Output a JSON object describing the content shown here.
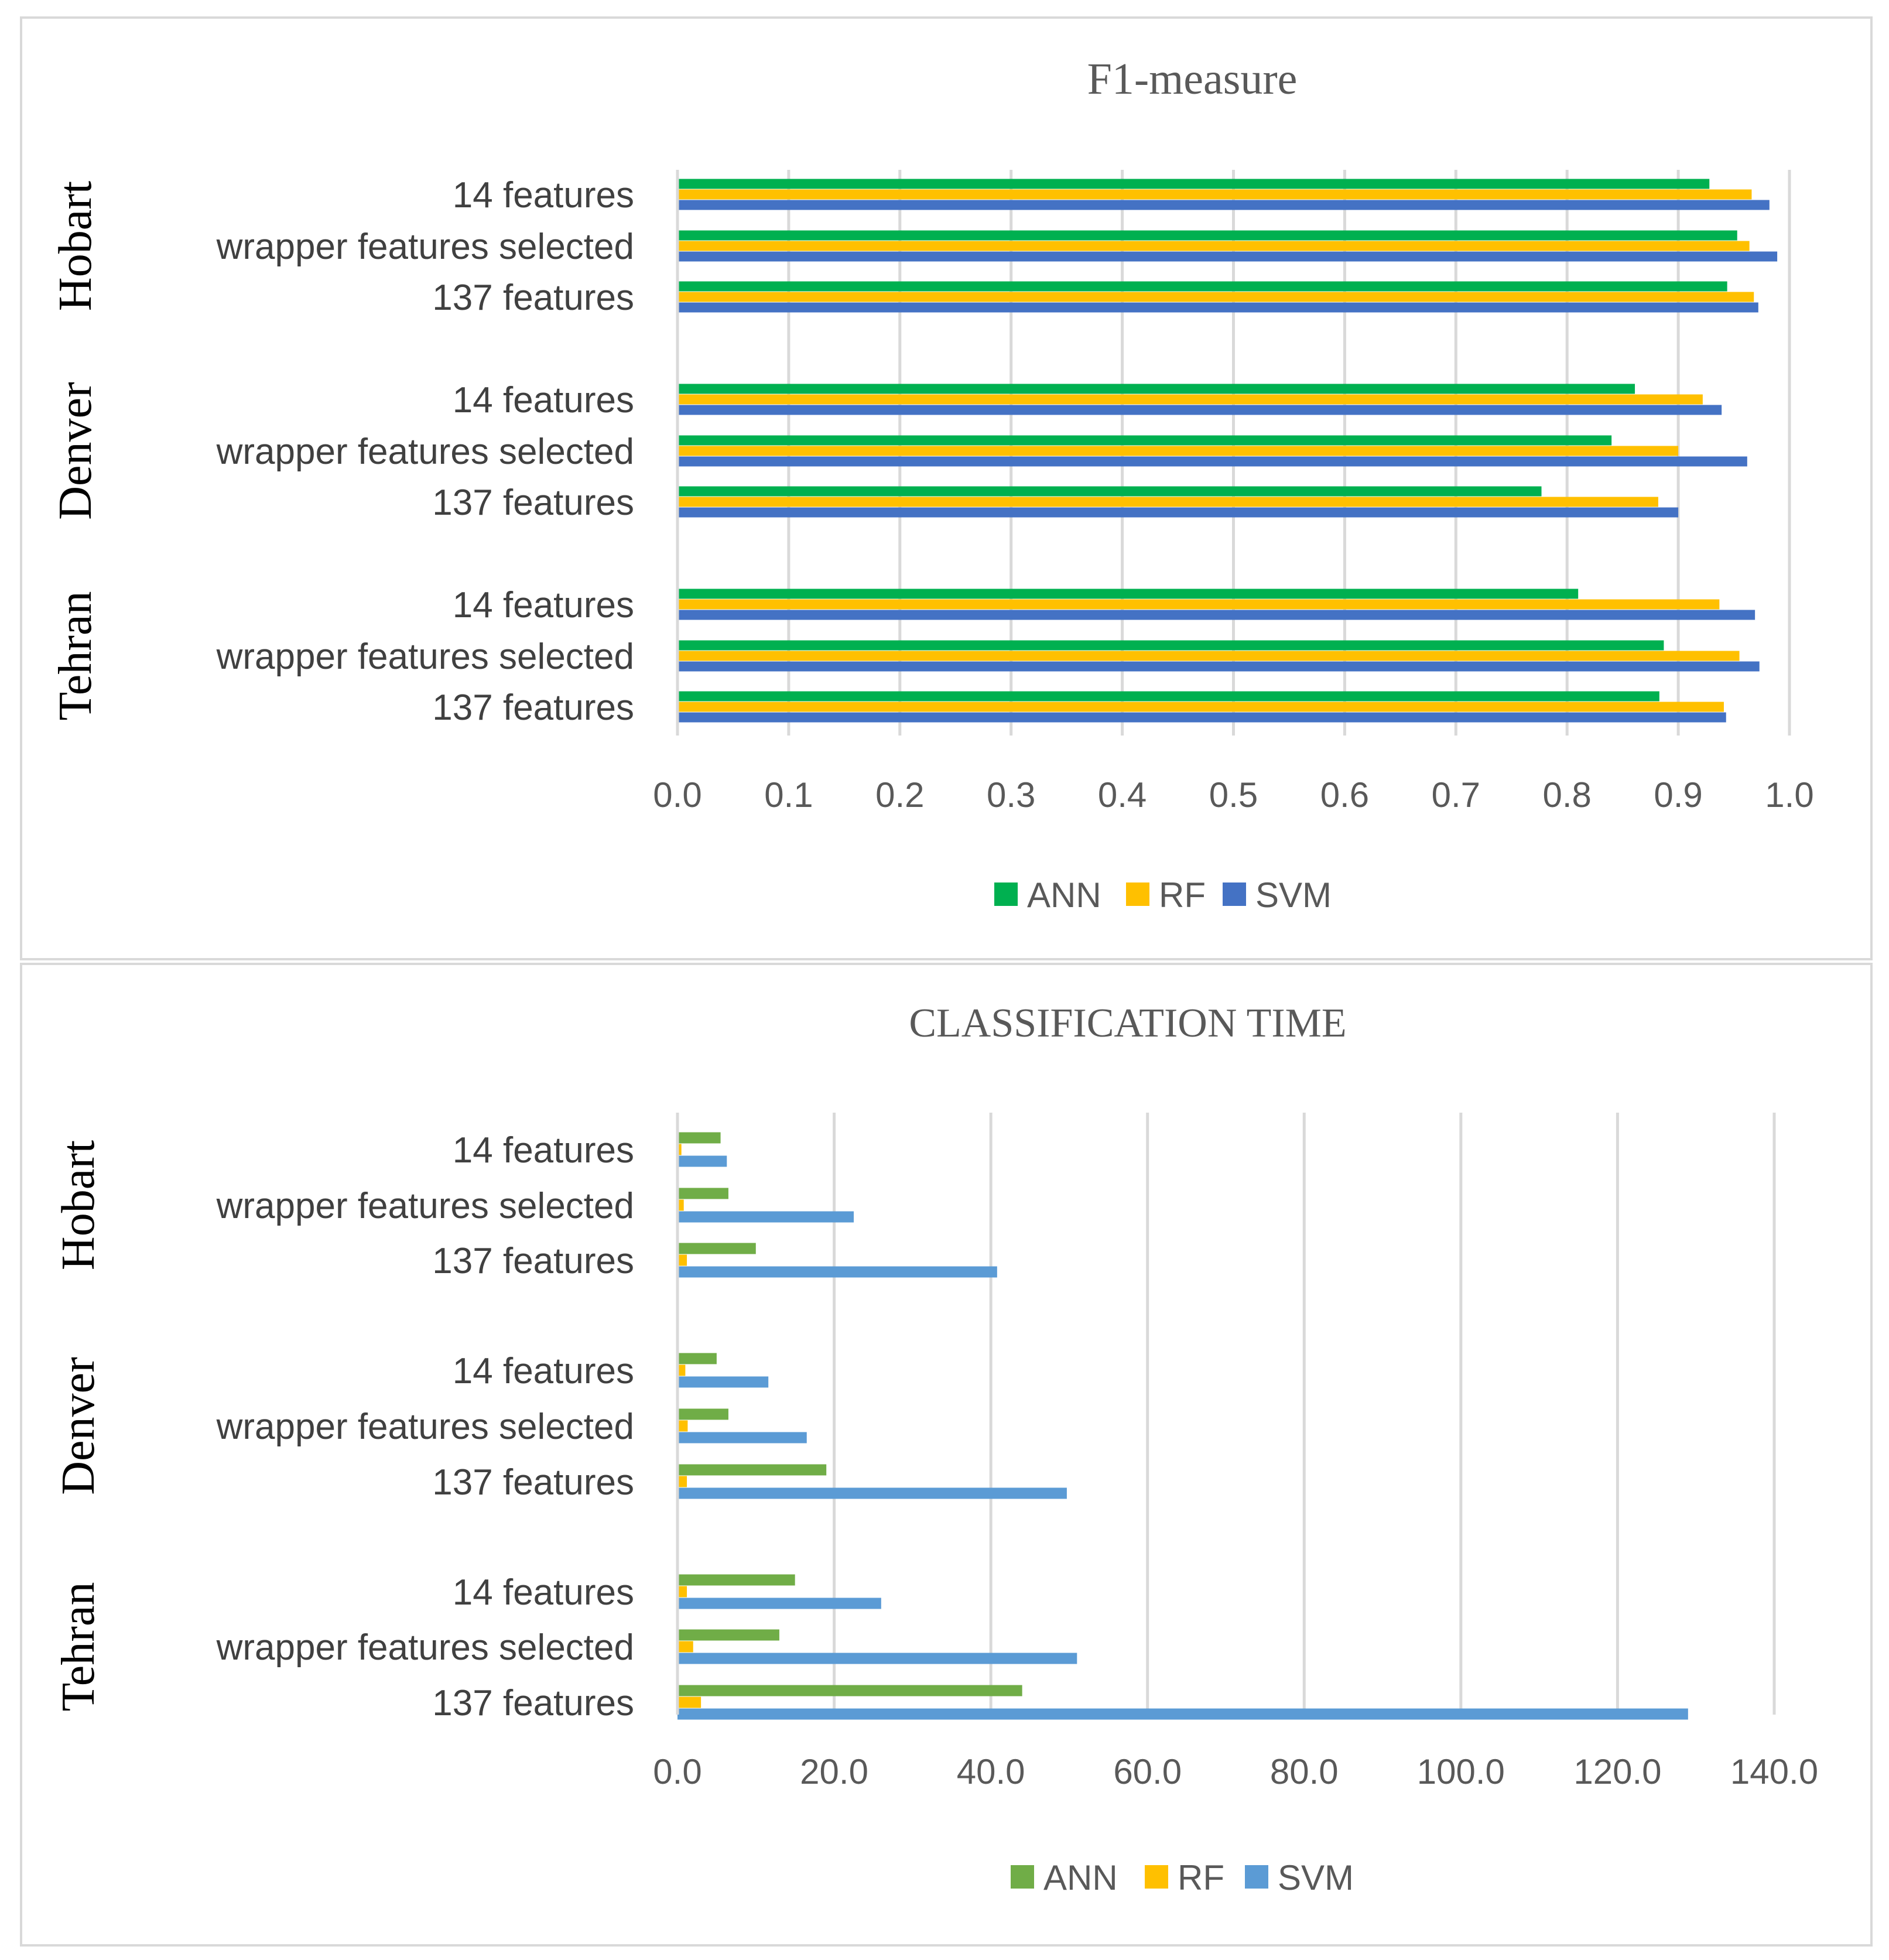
{
  "chart_data": [
    {
      "type": "bar",
      "orientation": "horizontal",
      "title": "F1-measure",
      "xlim": [
        0.0,
        1.0
      ],
      "xticks": [
        "0.0",
        "0.1",
        "0.2",
        "0.3",
        "0.4",
        "0.5",
        "0.6",
        "0.7",
        "0.8",
        "0.9",
        "1.0"
      ],
      "grid": true,
      "legend_position": "bottom",
      "groups": [
        {
          "name": "Hobart",
          "categories": [
            "14 features",
            "wrapper  features selected",
            "137 features"
          ]
        },
        {
          "name": "Denver",
          "categories": [
            "14 features",
            "wrapper  features selected",
            "137 features"
          ]
        },
        {
          "name": "Tehran",
          "categories": [
            "14 features",
            "wrapper  features selected",
            "137 features"
          ]
        }
      ],
      "series": [
        {
          "name": "ANN",
          "color": "#00b050",
          "values": [
            0.928,
            0.953,
            0.944,
            0.861,
            0.84,
            0.777,
            0.81,
            0.887,
            0.883
          ]
        },
        {
          "name": "RF",
          "color": "#ffc000",
          "values": [
            0.966,
            0.964,
            0.968,
            0.922,
            0.9,
            0.882,
            0.937,
            0.955,
            0.941
          ]
        },
        {
          "name": "SVM",
          "color": "#4472c4",
          "values": [
            0.982,
            0.989,
            0.972,
            0.939,
            0.962,
            0.9,
            0.969,
            0.973,
            0.943
          ]
        }
      ]
    },
    {
      "type": "bar",
      "orientation": "horizontal",
      "title": "CLASSIFICATION TIME",
      "xlim": [
        0.0,
        140.0
      ],
      "xticks": [
        "0.0",
        "20.0",
        "40.0",
        "60.0",
        "80.0",
        "100.0",
        "120.0",
        "140.0"
      ],
      "grid": true,
      "legend_position": "bottom",
      "groups": [
        {
          "name": "Hobart",
          "categories": [
            "14 features",
            "wrapper  features selected",
            "137 features"
          ]
        },
        {
          "name": "Denver",
          "categories": [
            "14 features",
            "wrapper  features selected",
            "137 features"
          ]
        },
        {
          "name": "Tehran",
          "categories": [
            "14 features",
            "wrapper  features selected",
            "137 features"
          ]
        }
      ],
      "series": [
        {
          "name": "ANN",
          "color": "#70ad47",
          "values": [
            5.5,
            6.5,
            10.0,
            5.0,
            6.5,
            19.0,
            15.0,
            13.0,
            44.0
          ]
        },
        {
          "name": "RF",
          "color": "#ffc000",
          "values": [
            0.5,
            0.8,
            1.2,
            1.0,
            1.3,
            1.2,
            1.2,
            2.0,
            3.0
          ]
        },
        {
          "name": "SVM",
          "color": "#5b9bd5",
          "values": [
            6.3,
            22.5,
            40.8,
            11.6,
            16.5,
            49.7,
            26.0,
            51.0,
            129.0
          ]
        }
      ]
    }
  ]
}
